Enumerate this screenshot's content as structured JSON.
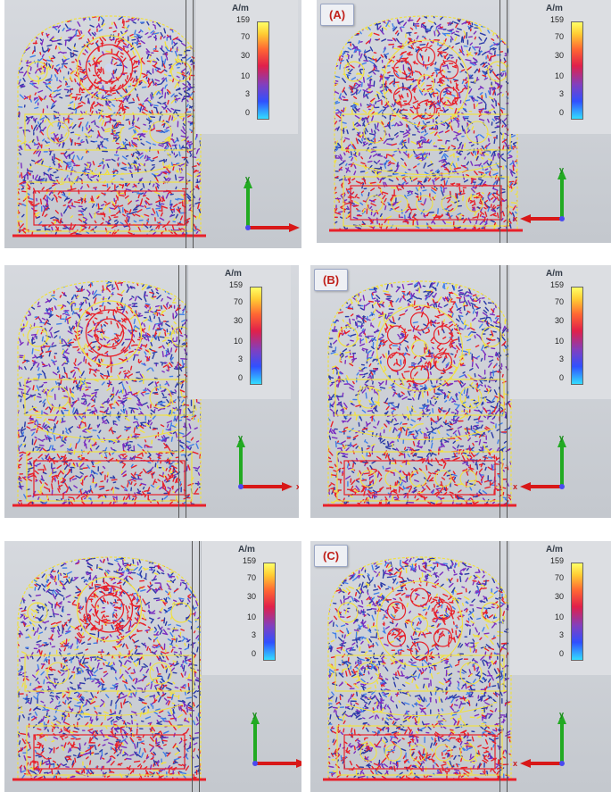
{
  "legend": {
    "unit": "A/m",
    "ticks": [
      "159",
      "70",
      "30",
      "10",
      "3",
      "0"
    ]
  },
  "axes": {
    "x_label": "x",
    "y_label": "y"
  },
  "panels": [
    {
      "label": ""
    },
    {
      "label": "(A)"
    },
    {
      "label": ""
    },
    {
      "label": "(B)"
    },
    {
      "label": ""
    },
    {
      "label": "(C)"
    }
  ],
  "colors": {
    "field_high": "#e8202a",
    "field_mid": "#7a2cc0",
    "field_low": "#2a3aa8",
    "field_struct": "#f0e040",
    "axis_y": "#22aa22",
    "axis_x": "#d81818"
  }
}
